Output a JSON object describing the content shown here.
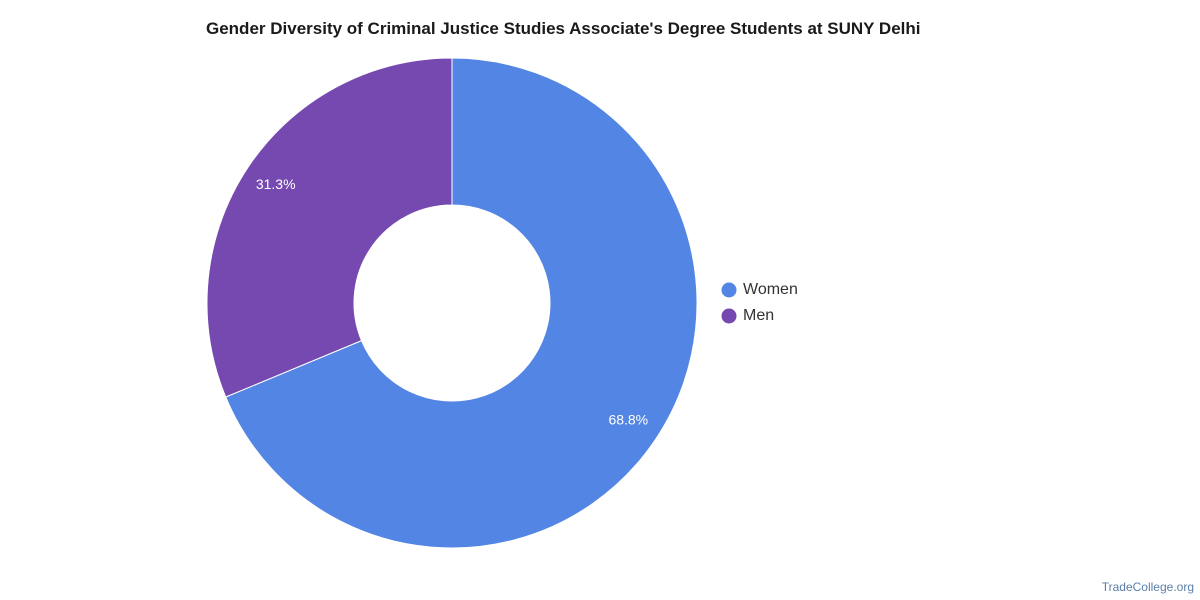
{
  "chart_data": {
    "type": "pie",
    "title": "Gender Diversity of Criminal Justice Studies Associate's Degree Students at SUNY Delhi",
    "donut": true,
    "legend_position": "right",
    "slices": [
      {
        "name": "Women",
        "value": 68.8,
        "label": "68.8%",
        "color": "#5386e4"
      },
      {
        "name": "Men",
        "value": 31.3,
        "label": "31.3%",
        "color": "#7649b0"
      }
    ]
  },
  "footer": {
    "source": "TradeCollege.org"
  }
}
